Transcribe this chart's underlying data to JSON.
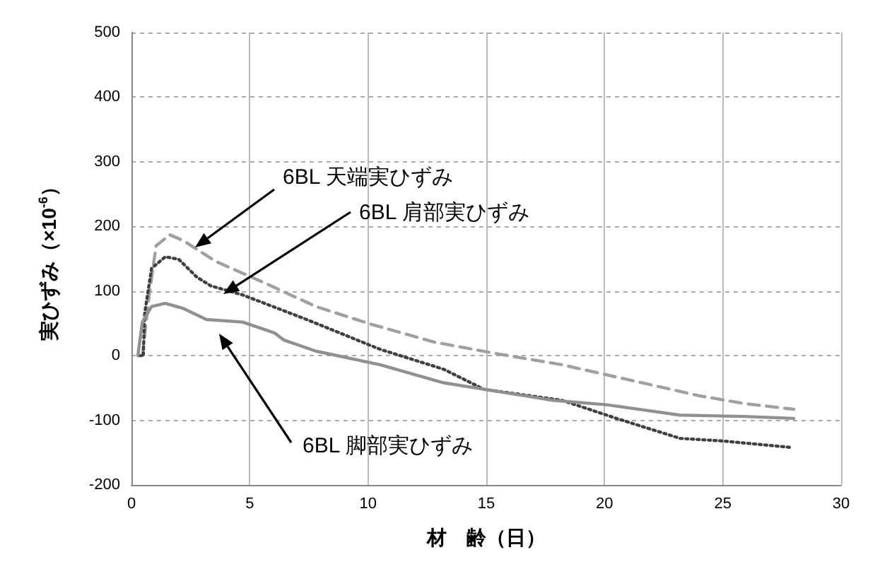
{
  "chart_data": {
    "type": "line",
    "xlabel": "材　齢（日）",
    "ylabel": "実ひずみ（×10$^{-6}$）",
    "xlim": [
      0,
      30
    ],
    "xticks": [
      0,
      5,
      10,
      15,
      20,
      25,
      30
    ],
    "ylim": [
      -200,
      500
    ],
    "yticks": [
      -200,
      -100,
      0,
      100,
      200,
      300,
      400,
      500
    ],
    "grid": true,
    "marker": "none",
    "series": [
      {
        "color": "#a0a0a0",
        "line_style": "dashed",
        "x": [
          0.46,
          0.75,
          1.04,
          1.62,
          2.2,
          3.55,
          5.48,
          7.8,
          10.1,
          12.8,
          15.3,
          18.2,
          21.1,
          24,
          25.9,
          28
        ],
        "values": [
          0,
          94,
          170,
          187,
          178,
          146,
          115,
          76,
          49,
          21,
          4,
          -14,
          -38,
          -62,
          -74,
          -83
        ]
      },
      {
        "color": "#404040",
        "line_style": "dotted",
        "x": [
          0.3,
          0.5,
          0.56,
          0.85,
          1.43,
          2.0,
          2.78,
          3.36,
          4.7,
          7.4,
          10.5,
          13.2,
          14.9,
          18.2,
          20.5,
          23.2,
          25,
          27.9
        ],
        "values": [
          0,
          0,
          66,
          135,
          153,
          149,
          121,
          108,
          94,
          56,
          10,
          -21,
          -52,
          -69,
          -97,
          -128,
          -132,
          -142
        ]
      },
      {
        "color": "#909090",
        "line_style": "solid",
        "x": [
          0.27,
          0.46,
          0.85,
          1.43,
          2.2,
          3.17,
          4.7,
          6.06,
          6.45,
          7.8,
          10.5,
          13.2,
          14.9,
          17.8,
          20.1,
          23.2,
          25.9,
          28
        ],
        "values": [
          0,
          52,
          76,
          81,
          73,
          56,
          52,
          35,
          24,
          7,
          -14,
          -42,
          -52,
          -69,
          -76,
          -92,
          -94,
          -97
        ]
      }
    ],
    "annotations": [
      "6BL 天端実ひずみ",
      "6BL 肩部実ひずみ",
      "6BL 脚部実ひずみ"
    ]
  }
}
